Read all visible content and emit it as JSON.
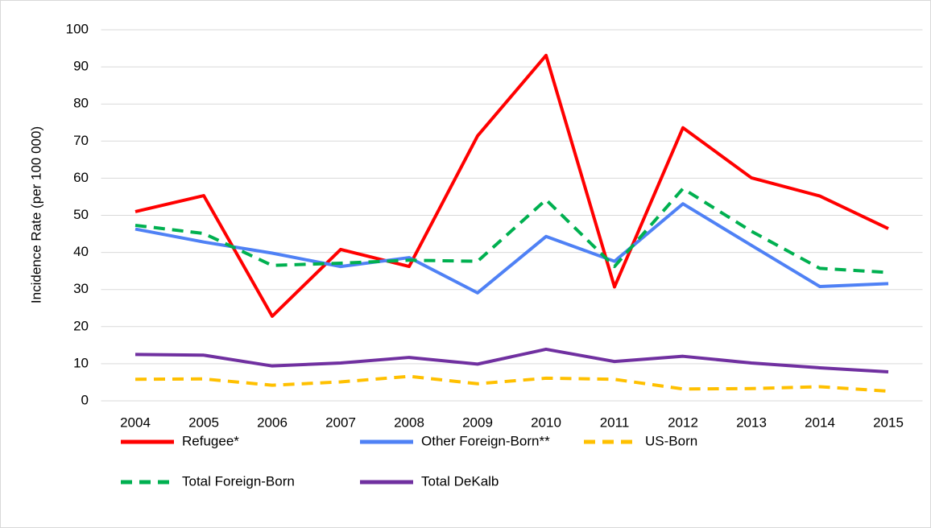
{
  "chart_data": {
    "type": "line",
    "y_label": "Incidence Rate (per 100 000)",
    "categories": [
      "2004",
      "2005",
      "2006",
      "2007",
      "2008",
      "2009",
      "2010",
      "2011",
      "2012",
      "2013",
      "2014",
      "2015"
    ],
    "series": [
      {
        "name": "Refugee*",
        "color": "#ff0000",
        "dashed": false,
        "values": [
          51.0,
          55.3,
          22.8,
          40.8,
          36.2,
          71.4,
          93.1,
          30.7,
          73.6,
          60.1,
          55.2,
          46.4
        ]
      },
      {
        "name": "Other Foreign-Born**",
        "color": "#4f81f5",
        "dashed": false,
        "values": [
          46.3,
          42.8,
          39.8,
          36.2,
          38.6,
          29.1,
          44.3,
          37.6,
          53.1,
          41.9,
          30.8,
          31.6
        ]
      },
      {
        "name": "US-Born",
        "color": "#ffc000",
        "dashed": true,
        "values": [
          5.8,
          5.9,
          4.2,
          5.1,
          6.6,
          4.6,
          6.1,
          5.8,
          3.2,
          3.3,
          3.8,
          2.6
        ]
      },
      {
        "name": "Total Foreign-Born",
        "color": "#00b050",
        "dashed": true,
        "values": [
          47.3,
          45.1,
          36.5,
          37.1,
          37.9,
          37.6,
          54.2,
          36.2,
          57.2,
          45.7,
          35.7,
          34.6
        ]
      },
      {
        "name": "Total DeKalb",
        "color": "#7030a0",
        "dashed": false,
        "values": [
          12.5,
          12.3,
          9.4,
          10.2,
          11.7,
          9.9,
          13.9,
          10.6,
          12.0,
          10.2,
          8.9,
          7.8
        ]
      }
    ],
    "ylim": [
      0,
      100
    ],
    "yticks": [
      0,
      10,
      20,
      30,
      40,
      50,
      60,
      70,
      80,
      90,
      100
    ],
    "grid": true
  }
}
